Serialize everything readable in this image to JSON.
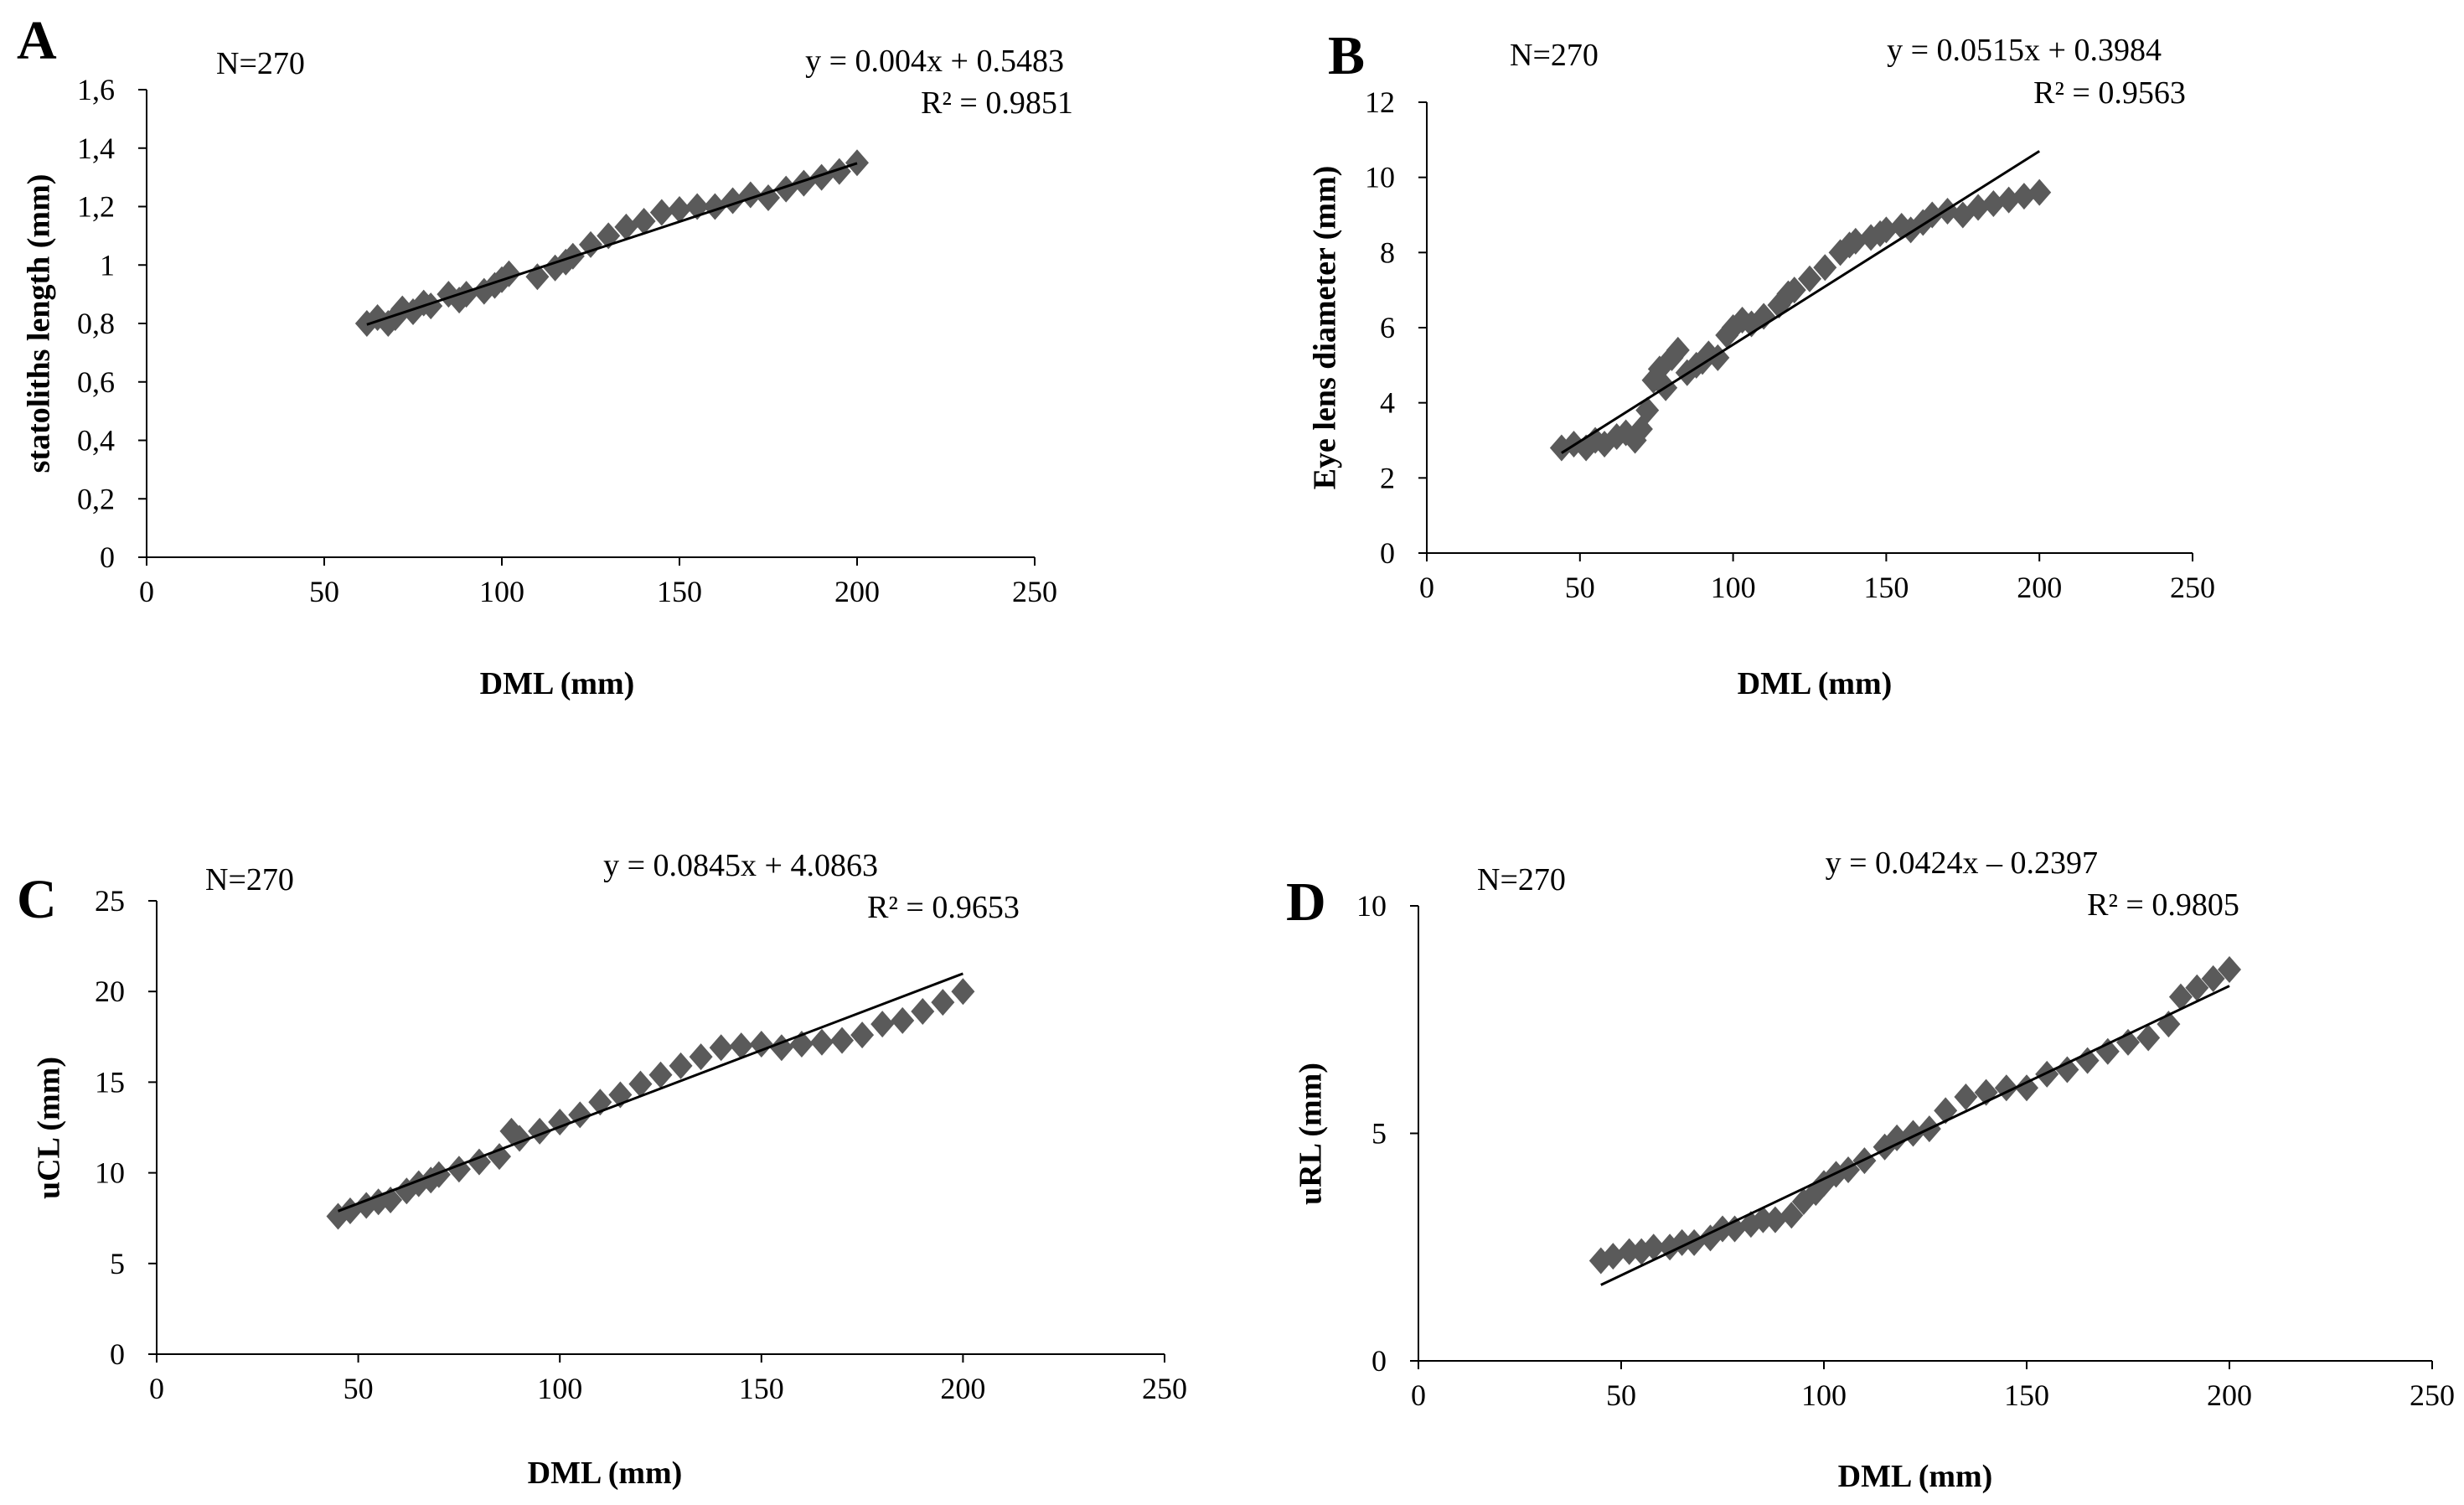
{
  "chart_data": [
    {
      "type": "scatter",
      "panel": "A",
      "n_label": "N=270",
      "equation": "y = 0.004x + 0.5483",
      "r2": "R² = 0.9851",
      "xlabel": "DML (mm)",
      "ylabel": "statoliths length  (mm)",
      "xlim": [
        0,
        250
      ],
      "ylim": [
        0,
        1.6
      ],
      "xticks": [
        "0",
        "50",
        "100",
        "150",
        "200",
        "250"
      ],
      "yticks": [
        "0",
        "0,2",
        "0,4",
        "0,6",
        "0,8",
        "1",
        "1,2",
        "1,4",
        "1,6"
      ],
      "trend": {
        "slope": 0.004,
        "intercept": 0.5483,
        "x_range": [
          62,
          200
        ]
      },
      "points": {
        "x": [
          62,
          65,
          68,
          70,
          72,
          75,
          78,
          80,
          85,
          88,
          90,
          95,
          98,
          100,
          102,
          110,
          115,
          118,
          120,
          125,
          130,
          135,
          140,
          145,
          150,
          155,
          160,
          165,
          170,
          175,
          180,
          185,
          190,
          195,
          200
        ],
        "y": [
          0.8,
          0.82,
          0.8,
          0.82,
          0.85,
          0.84,
          0.87,
          0.86,
          0.9,
          0.88,
          0.9,
          0.91,
          0.93,
          0.95,
          0.97,
          0.96,
          0.99,
          1.01,
          1.03,
          1.07,
          1.1,
          1.13,
          1.15,
          1.18,
          1.19,
          1.2,
          1.2,
          1.22,
          1.24,
          1.23,
          1.26,
          1.28,
          1.3,
          1.32,
          1.35
        ]
      }
    },
    {
      "type": "scatter",
      "panel": "B",
      "n_label": "N=270",
      "equation": "y = 0.0515x + 0.3984",
      "r2": "R² = 0.9563",
      "xlabel": "DML (mm)",
      "ylabel": "Eye lens diameter  (mm)",
      "xlim": [
        0,
        250
      ],
      "ylim": [
        0,
        12
      ],
      "xticks": [
        "0",
        "50",
        "100",
        "150",
        "200",
        "250"
      ],
      "yticks": [
        "0",
        "2",
        "4",
        "6",
        "8",
        "10",
        "12"
      ],
      "trend": {
        "slope": 0.0515,
        "intercept": 0.3984,
        "x_range": [
          44,
          200
        ]
      },
      "points": {
        "x": [
          44,
          48,
          52,
          55,
          58,
          62,
          65,
          68,
          70,
          72,
          74,
          76,
          78,
          80,
          82,
          85,
          88,
          90,
          92,
          95,
          98,
          100,
          103,
          106,
          110,
          115,
          118,
          120,
          125,
          130,
          135,
          138,
          140,
          145,
          148,
          150,
          155,
          158,
          162,
          165,
          170,
          175,
          180,
          185,
          190,
          195,
          200
        ],
        "y": [
          2.8,
          2.9,
          2.8,
          3.0,
          2.9,
          3.1,
          3.2,
          3.0,
          3.3,
          3.8,
          4.6,
          4.9,
          4.4,
          5.2,
          5.4,
          4.8,
          5.0,
          5.1,
          5.3,
          5.2,
          5.8,
          6.0,
          6.2,
          6.1,
          6.3,
          6.6,
          6.9,
          7.0,
          7.3,
          7.6,
          8.0,
          8.2,
          8.3,
          8.4,
          8.5,
          8.6,
          8.7,
          8.6,
          8.8,
          9.0,
          9.1,
          9.0,
          9.2,
          9.3,
          9.4,
          9.5,
          9.6
        ]
      }
    },
    {
      "type": "scatter",
      "panel": "C",
      "n_label": "N=270",
      "equation": "y = 0.0845x + 4.0863",
      "r2": "R² = 0.9653",
      "xlabel": "DML (mm)",
      "ylabel": "uCL (mm)",
      "xlim": [
        0,
        250
      ],
      "ylim": [
        0,
        25
      ],
      "xticks": [
        "0",
        "50",
        "100",
        "150",
        "200",
        "250"
      ],
      "yticks": [
        "0",
        "5",
        "10",
        "15",
        "20",
        "25"
      ],
      "trend": {
        "slope": 0.0845,
        "intercept": 4.0863,
        "x_range": [
          45,
          200
        ]
      },
      "points": {
        "x": [
          45,
          48,
          52,
          55,
          58,
          62,
          65,
          68,
          70,
          75,
          80,
          85,
          88,
          90,
          95,
          100,
          105,
          110,
          115,
          120,
          125,
          130,
          135,
          140,
          145,
          150,
          155,
          160,
          165,
          170,
          175,
          180,
          185,
          190,
          195,
          200
        ],
        "y": [
          7.6,
          7.9,
          8.2,
          8.4,
          8.5,
          9.0,
          9.4,
          9.6,
          9.9,
          10.2,
          10.6,
          10.9,
          12.3,
          11.9,
          12.3,
          12.8,
          13.2,
          13.9,
          14.3,
          14.9,
          15.4,
          15.9,
          16.4,
          16.9,
          17.0,
          17.1,
          16.9,
          17.1,
          17.2,
          17.3,
          17.6,
          18.2,
          18.4,
          18.9,
          19.4,
          20.0
        ]
      }
    },
    {
      "type": "scatter",
      "panel": "D",
      "n_label": "N=270",
      "equation": "y = 0.0424x – 0.2397",
      "r2": "R² = 0.9805",
      "xlabel": "DML (mm)",
      "ylabel": "uRL (mm)",
      "xlim": [
        0,
        250
      ],
      "ylim": [
        0,
        10
      ],
      "xticks": [
        "0",
        "50",
        "100",
        "150",
        "200",
        "250"
      ],
      "yticks": [
        "0",
        "5",
        "10"
      ],
      "trend": {
        "slope": 0.0424,
        "intercept": -0.2397,
        "x_range": [
          45,
          200
        ]
      },
      "points": {
        "x": [
          45,
          48,
          52,
          55,
          58,
          62,
          65,
          68,
          72,
          75,
          78,
          82,
          85,
          88,
          92,
          95,
          98,
          100,
          103,
          106,
          110,
          115,
          118,
          122,
          126,
          130,
          135,
          140,
          145,
          150,
          155,
          160,
          165,
          170,
          175,
          180,
          185,
          188,
          192,
          196,
          200
        ],
        "y": [
          2.2,
          2.3,
          2.4,
          2.4,
          2.5,
          2.5,
          2.6,
          2.6,
          2.7,
          2.9,
          2.9,
          3.0,
          3.1,
          3.1,
          3.2,
          3.5,
          3.7,
          3.9,
          4.1,
          4.2,
          4.4,
          4.7,
          4.9,
          5.0,
          5.1,
          5.5,
          5.8,
          5.9,
          6.0,
          6.0,
          6.3,
          6.4,
          6.6,
          6.8,
          7.0,
          7.1,
          7.4,
          8.0,
          8.2,
          8.4,
          8.6
        ]
      }
    }
  ]
}
